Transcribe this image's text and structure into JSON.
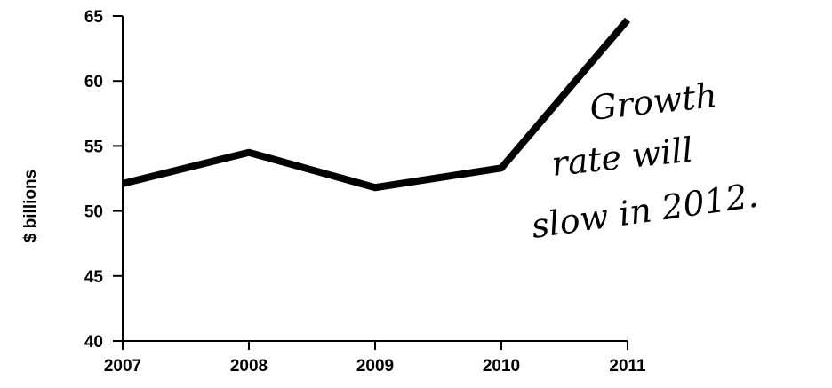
{
  "chart_data": {
    "type": "line",
    "x": [
      "2007",
      "2008",
      "2009",
      "2010",
      "2011"
    ],
    "series": [
      {
        "values": [
          52.1,
          54.5,
          51.8,
          53.3,
          64.7
        ]
      }
    ],
    "ylabel": "$ billions",
    "xlabel": "",
    "ylim": [
      40,
      65
    ],
    "yticks": [
      40,
      45,
      50,
      55,
      60,
      65
    ],
    "grid": false,
    "line_color": "#000000",
    "annotation": [
      "Growth",
      "rate will",
      "slow in 2012."
    ]
  }
}
